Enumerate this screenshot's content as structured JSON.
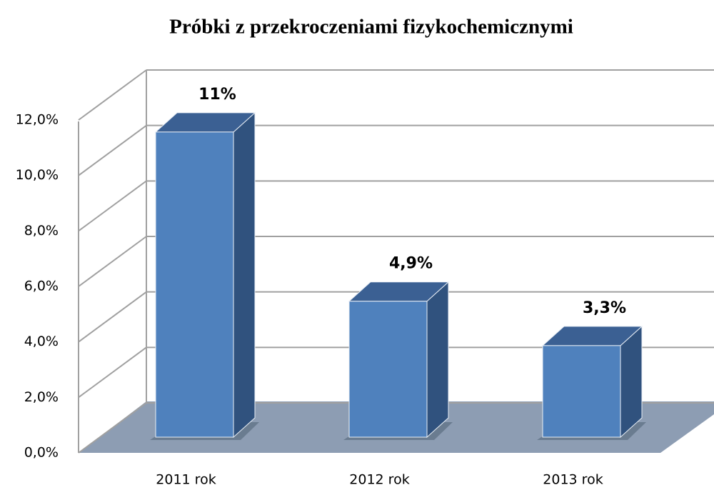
{
  "chart_data": {
    "type": "bar3d",
    "title": "Próbki z przekroczeniami fizykochemicznymi",
    "categories": [
      "2011 rok",
      "2012 rok",
      "2013 rok"
    ],
    "values": [
      11,
      4.9,
      3.3
    ],
    "value_labels": [
      "11%",
      "4,9%",
      "3,3%"
    ],
    "color": "#4f81bd",
    "ylim": [
      0,
      12
    ],
    "yticks": [
      {
        "value": 0,
        "label": "0,0%"
      },
      {
        "value": 2,
        "label": "2,0%"
      },
      {
        "value": 4,
        "label": "4,0%"
      },
      {
        "value": 6,
        "label": "6,0%"
      },
      {
        "value": 8,
        "label": "8,0%"
      },
      {
        "value": 10,
        "label": "10,0%"
      },
      {
        "value": 12,
        "label": "12,0%"
      }
    ],
    "grid": true
  }
}
